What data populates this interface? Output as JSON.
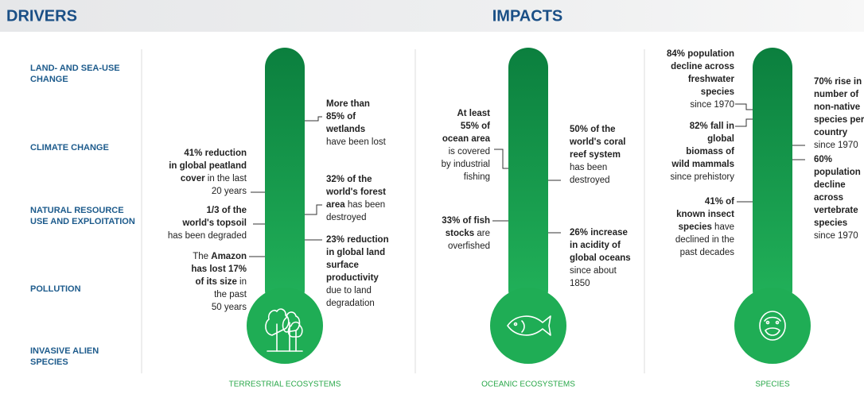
{
  "header": {
    "left": "DRIVERS",
    "right": "IMPACTS"
  },
  "drivers": [
    [
      "LAND- AND SEA-USE",
      "CHANGE"
    ],
    [
      "CLIMATE CHANGE"
    ],
    [
      "NATURAL RESOURCE",
      "USE AND EXPLOITATION"
    ],
    [
      "POLLUTION"
    ],
    [
      "INVASIVE ALIEN",
      "SPECIES"
    ]
  ],
  "columns": [
    {
      "label": "TERRESTRIAL ECOSYSTEMS",
      "annotations": [
        {
          "lines": [
            [
              {
                "bold": "More than"
              }
            ],
            [
              {
                "bold": "85% of"
              }
            ],
            [
              {
                "bold": "wetlands"
              }
            ],
            [
              {
                "normal": "have been lost"
              }
            ]
          ]
        },
        {
          "lines": [
            [
              {
                "bold": "41% reduction"
              }
            ],
            [
              {
                "bold": "in global peatland"
              }
            ],
            [
              {
                "bold": "cover"
              },
              {
                "normal": " in the last"
              }
            ],
            [
              {
                "normal": "20 years"
              }
            ]
          ]
        },
        {
          "lines": [
            [
              {
                "bold": "32% of the"
              }
            ],
            [
              {
                "bold": "world's forest"
              }
            ],
            [
              {
                "bold": "area"
              },
              {
                "normal": " has been"
              }
            ],
            [
              {
                "normal": "destroyed"
              }
            ]
          ]
        },
        {
          "lines": [
            [
              {
                "bold": "1/3 of the"
              }
            ],
            [
              {
                "bold": "world's topsoil"
              }
            ],
            [
              {
                "normal": "has been degraded"
              }
            ]
          ]
        },
        {
          "lines": [
            [
              {
                "bold": "23% reduction"
              }
            ],
            [
              {
                "bold": "in global land"
              }
            ],
            [
              {
                "bold": "surface"
              }
            ],
            [
              {
                "bold": "productivity"
              }
            ],
            [
              {
                "normal": "due to land"
              }
            ],
            [
              {
                "normal": "degradation"
              }
            ]
          ]
        },
        {
          "lines": [
            [
              {
                "normal": "The "
              },
              {
                "bold": "Amazon"
              }
            ],
            [
              {
                "bold": "has lost 17%"
              }
            ],
            [
              {
                "bold": "of its size"
              },
              {
                "normal": " in"
              }
            ],
            [
              {
                "normal": "the past"
              }
            ],
            [
              {
                "normal": "50 years"
              }
            ]
          ]
        }
      ]
    },
    {
      "label": "OCEANIC ECOSYSTEMS",
      "annotations": [
        {
          "lines": [
            [
              {
                "bold": "At least"
              }
            ],
            [
              {
                "bold": "55% of"
              }
            ],
            [
              {
                "bold": "ocean area"
              }
            ],
            [
              {
                "normal": "is covered"
              }
            ],
            [
              {
                "normal": "by industrial"
              }
            ],
            [
              {
                "normal": "fishing"
              }
            ]
          ]
        },
        {
          "lines": [
            [
              {
                "bold": "50% of the"
              }
            ],
            [
              {
                "bold": "world's coral"
              }
            ],
            [
              {
                "bold": "reef system"
              }
            ],
            [
              {
                "normal": "has been"
              }
            ],
            [
              {
                "normal": "destroyed"
              }
            ]
          ]
        },
        {
          "lines": [
            [
              {
                "bold": "33% of fish"
              }
            ],
            [
              {
                "bold": "stocks"
              },
              {
                "normal": " are"
              }
            ],
            [
              {
                "normal": "overfished"
              }
            ]
          ]
        },
        {
          "lines": [
            [
              {
                "bold": "26% increase"
              }
            ],
            [
              {
                "bold": "in acidity of"
              }
            ],
            [
              {
                "bold": "global oceans"
              }
            ],
            [
              {
                "normal": "since about"
              }
            ],
            [
              {
                "normal": "1850"
              }
            ]
          ]
        }
      ]
    },
    {
      "label": "SPECIES",
      "annotations": [
        {
          "lines": [
            [
              {
                "bold": "84% population"
              }
            ],
            [
              {
                "bold": "decline across"
              }
            ],
            [
              {
                "bold": "freshwater"
              }
            ],
            [
              {
                "bold": "species"
              }
            ],
            [
              {
                "normal": "since 1970"
              }
            ]
          ]
        },
        {
          "lines": [
            [
              {
                "bold": "70% rise in"
              }
            ],
            [
              {
                "bold": "number of"
              }
            ],
            [
              {
                "bold": "non-native"
              }
            ],
            [
              {
                "bold": "species per"
              }
            ],
            [
              {
                "bold": "country"
              }
            ],
            [
              {
                "normal": "since 1970"
              }
            ]
          ]
        },
        {
          "lines": [
            [
              {
                "bold": "82% fall in"
              }
            ],
            [
              {
                "bold": "global"
              }
            ],
            [
              {
                "bold": "biomass of"
              }
            ],
            [
              {
                "bold": "wild mammals"
              }
            ],
            [
              {
                "normal": "since prehistory"
              }
            ]
          ]
        },
        {
          "lines": [
            [
              {
                "bold": "60%"
              }
            ],
            [
              {
                "bold": "population"
              }
            ],
            [
              {
                "bold": "decline"
              }
            ],
            [
              {
                "bold": "across"
              }
            ],
            [
              {
                "bold": "vertebrate"
              }
            ],
            [
              {
                "bold": "species"
              }
            ],
            [
              {
                "normal": "since 1970"
              }
            ]
          ]
        },
        {
          "lines": [
            [
              {
                "bold": "41% of"
              }
            ],
            [
              {
                "bold": "known insect"
              }
            ],
            [
              {
                "bold": "species"
              },
              {
                "normal": " have"
              }
            ],
            [
              {
                "normal": "declined in the"
              }
            ],
            [
              {
                "normal": "past decades"
              }
            ]
          ]
        }
      ]
    }
  ]
}
